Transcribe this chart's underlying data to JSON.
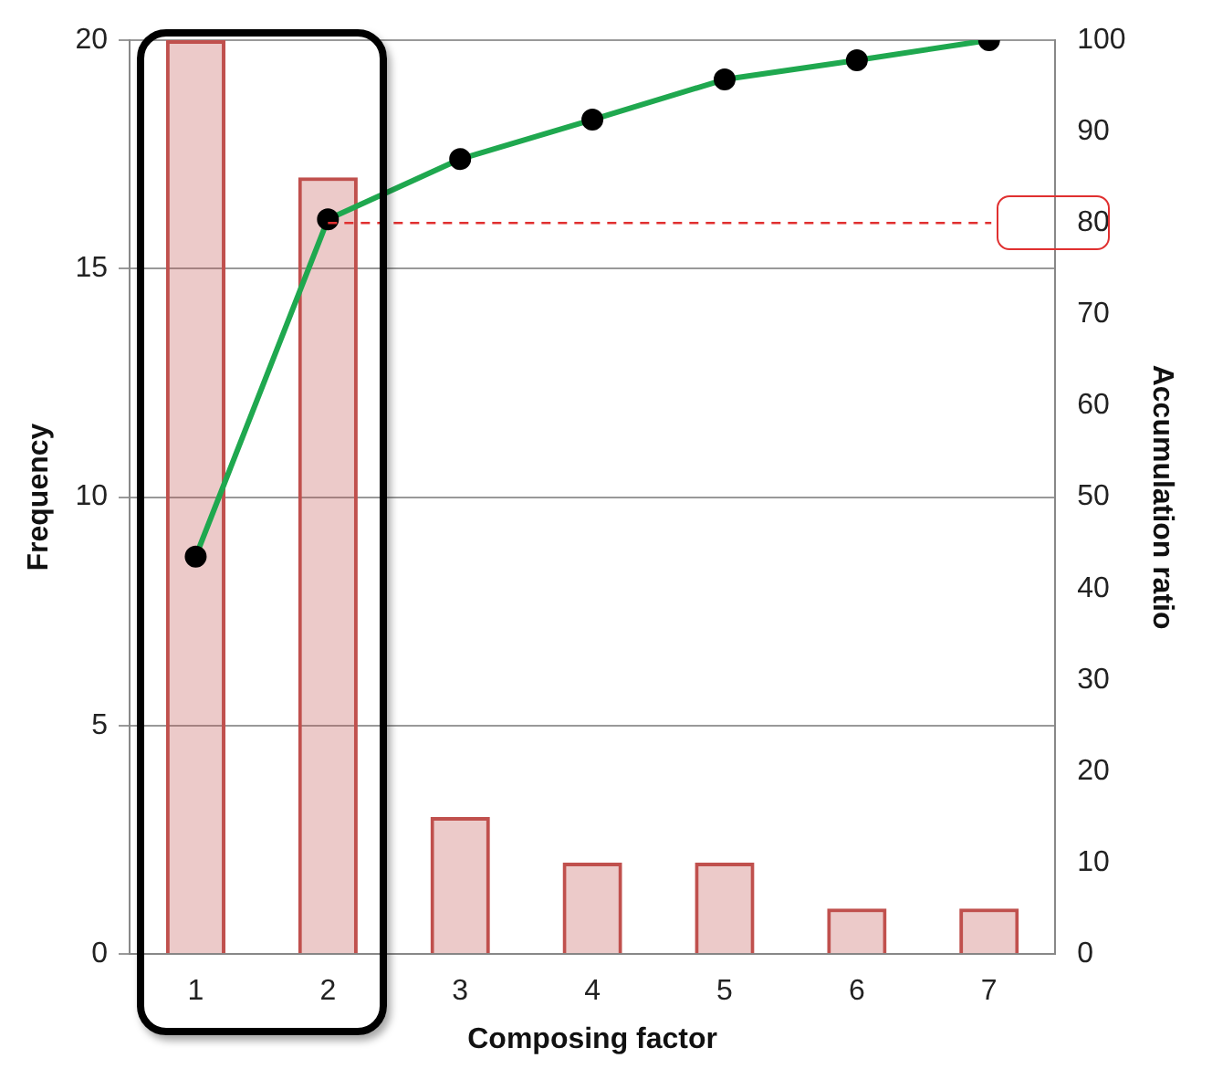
{
  "chart_data": {
    "type": "bar",
    "xlabel": "Composing factor",
    "ylabel": "Frequency",
    "y2label": "Accumulation ratio",
    "categories": [
      "1",
      "2",
      "3",
      "4",
      "5",
      "6",
      "7"
    ],
    "series": [
      {
        "color": "#c0504d",
        "values": [
          20,
          17,
          3,
          2,
          2,
          1,
          1
        ]
      },
      {
        "type": "line",
        "axis": "y2",
        "color": "#1fa84f",
        "marker": "circle",
        "values": [
          43.5,
          80.4,
          87.0,
          91.3,
          95.7,
          97.8,
          100
        ]
      }
    ],
    "ylim": [
      0,
      20
    ],
    "yticks": [
      0,
      5,
      10,
      15,
      20
    ],
    "y2lim": [
      0,
      100
    ],
    "y2ticks": [
      0,
      10,
      20,
      30,
      40,
      50,
      60,
      70,
      80,
      90,
      100
    ],
    "ref_lines": [
      {
        "axis": "y2",
        "value": 80,
        "color": "#e03030",
        "line_style": "dashed"
      }
    ],
    "grid": "y",
    "legend": false
  }
}
